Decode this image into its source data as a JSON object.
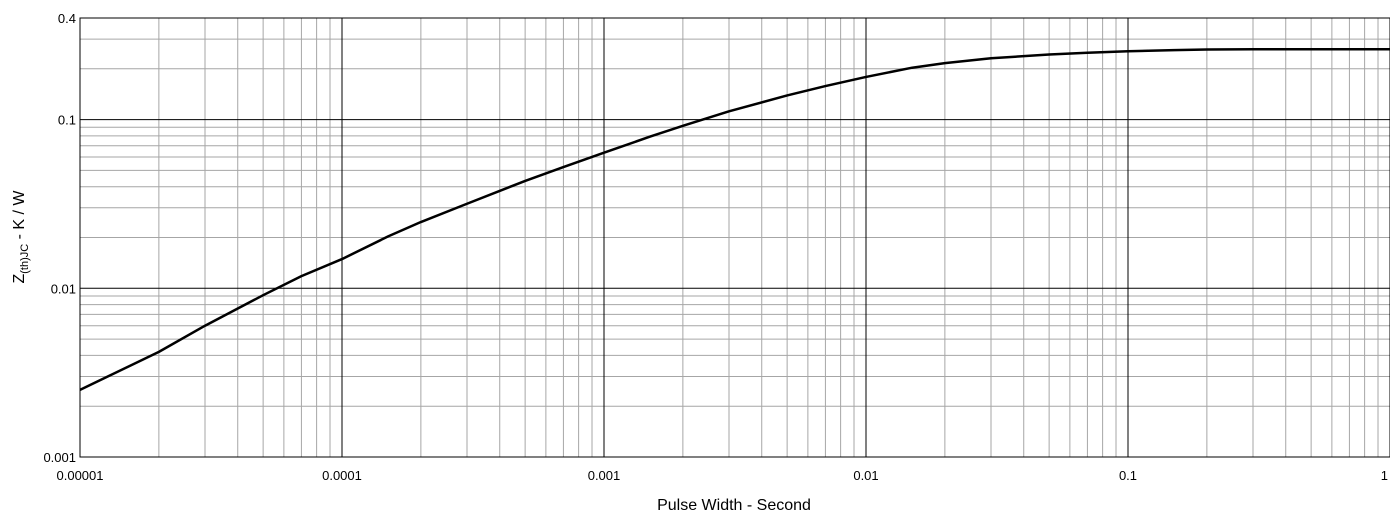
{
  "chart_data": {
    "type": "line",
    "x_scale": "log",
    "y_scale": "log",
    "xlim": [
      1e-05,
      1
    ],
    "ylim": [
      0.001,
      0.4
    ],
    "grid": true,
    "xlabel": "Pulse Width - Second",
    "ylabel": {
      "main": "Z",
      "subscript": "(th)JC",
      "suffix": " - K / W"
    },
    "x_ticks": [
      {
        "value": 1e-05,
        "label": "0.00001"
      },
      {
        "value": 0.0001,
        "label": "0.0001"
      },
      {
        "value": 0.001,
        "label": "0.001"
      },
      {
        "value": 0.01,
        "label": "0.01"
      },
      {
        "value": 0.1,
        "label": "0.1"
      },
      {
        "value": 1,
        "label": "1"
      }
    ],
    "y_ticks": [
      {
        "value": 0.001,
        "label": "0.001"
      },
      {
        "value": 0.01,
        "label": "0.01"
      },
      {
        "value": 0.1,
        "label": "0.1"
      },
      {
        "value": 0.4,
        "label": "0.4"
      }
    ],
    "series": [
      {
        "color": "#000000",
        "x": [
          1e-05,
          2e-05,
          3e-05,
          5e-05,
          7e-05,
          0.0001,
          0.00015,
          0.0002,
          0.0003,
          0.0005,
          0.0007,
          0.001,
          0.0015,
          0.002,
          0.003,
          0.005,
          0.007,
          0.01,
          0.015,
          0.02,
          0.03,
          0.05,
          0.07,
          0.1,
          0.15,
          0.2,
          0.3,
          0.5,
          0.7,
          1
        ],
        "y": [
          0.0025,
          0.0042,
          0.006,
          0.0091,
          0.0118,
          0.0149,
          0.0203,
          0.0247,
          0.0317,
          0.0433,
          0.0523,
          0.0636,
          0.0793,
          0.0918,
          0.112,
          0.139,
          0.158,
          0.179,
          0.203,
          0.216,
          0.231,
          0.243,
          0.249,
          0.254,
          0.258,
          0.26,
          0.261,
          0.261,
          0.261,
          0.261
        ]
      }
    ]
  }
}
